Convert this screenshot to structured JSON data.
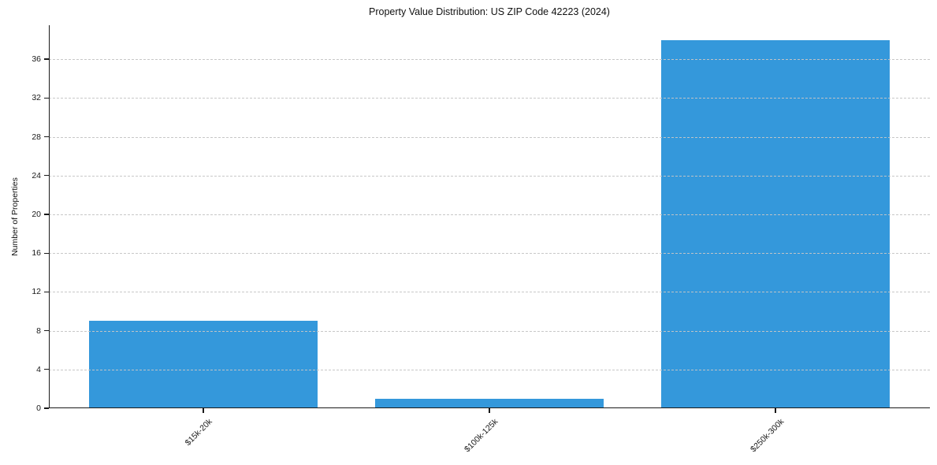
{
  "figure": {
    "background": "#ffffff"
  },
  "chart_data": {
    "type": "bar",
    "title": "Property Value Distribution: US ZIP Code 42223 (2024)",
    "xlabel": "",
    "ylabel": "Number of Properties",
    "categories": [
      "$15k-20k",
      "$100k-125k",
      "$250k-300k"
    ],
    "values": [
      9,
      1,
      38
    ],
    "yticks": [
      0,
      4,
      8,
      12,
      16,
      20,
      24,
      28,
      32,
      36
    ],
    "ylim": [
      0,
      39.5
    ],
    "xlim": [
      -0.54,
      2.54
    ],
    "bar_width_ratio": 0.8,
    "bar_color": "#3498db",
    "grid": {
      "show": true,
      "axis": "y",
      "style": "dashed",
      "color": "#c6c6c6"
    },
    "legend": null,
    "x_tick_rotation_deg": 45,
    "text_color": "#111111",
    "spine_color": "#1a1a1a"
  }
}
